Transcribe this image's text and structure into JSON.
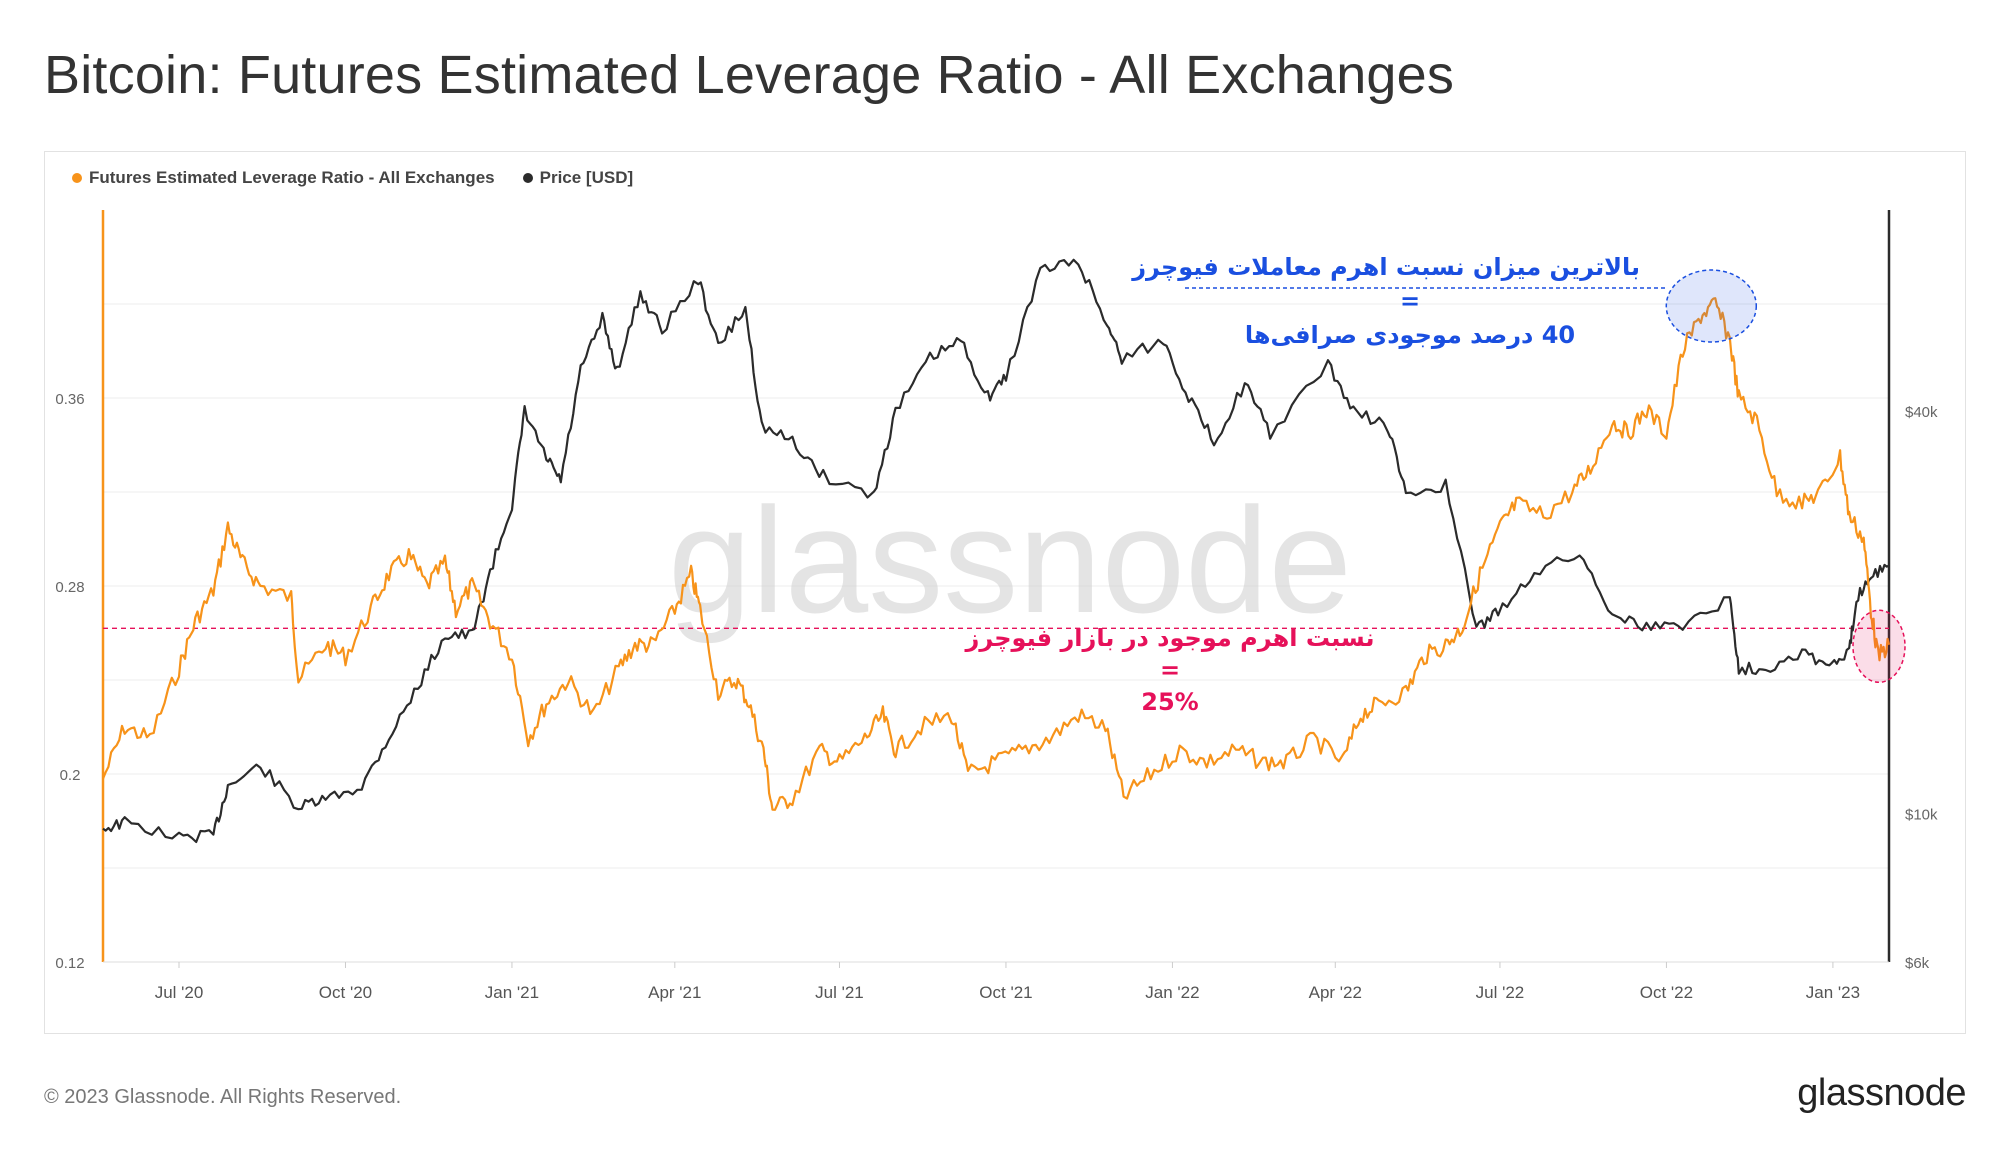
{
  "header": {
    "title": "Bitcoin: Futures Estimated Leverage Ratio - All Exchanges"
  },
  "legend": {
    "items": [
      {
        "label": "Futures Estimated Leverage Ratio - All Exchanges",
        "color": "#f7931a"
      },
      {
        "label": "Price [USD]",
        "color": "#2b2b2b"
      }
    ]
  },
  "annotations": {
    "top": {
      "line1": "بالاترین میزان نسبت اهرم معاملات فیوچرز",
      "line2": "=",
      "line3": "40 درصد موجودی صرافی‌ها",
      "color": "#1a4fe0"
    },
    "mid": {
      "line1": "نسبت اهرم موجود در بازار فیوچرز",
      "line2": "=",
      "line3": "25%",
      "color": "#e6115a"
    }
  },
  "watermark": "glassnode",
  "footer": {
    "copyright": "© 2023 Glassnode. All Rights Reserved.",
    "brand": "glassnode"
  },
  "chart_data": {
    "type": "line",
    "x_ticks": [
      "Jul '20",
      "Oct '20",
      "Jan '21",
      "Apr '21",
      "Jul '21",
      "Oct '21",
      "Jan '22",
      "Apr '22",
      "Jul '22",
      "Oct '22",
      "Jan '23"
    ],
    "x_range": [
      "2020-05-20",
      "2023-02-01"
    ],
    "y_left": {
      "label": "Futures Estimated Leverage Ratio",
      "ticks": [
        "0.12",
        "0.2",
        "0.28",
        "0.36"
      ],
      "range": [
        0.12,
        0.44
      ]
    },
    "y_right": {
      "label": "Price [USD]",
      "scale": "log",
      "ticks": [
        "$6k",
        "$10k",
        "$40k"
      ],
      "range": [
        6000,
        80000
      ]
    },
    "reference_line": {
      "value": 0.262,
      "label": "25%",
      "color": "#e6115a"
    },
    "series": [
      {
        "name": "Futures Estimated Leverage Ratio - All Exchanges",
        "axis": "left",
        "color": "#f7931a",
        "points": [
          [
            "2020-05-20",
            0.198
          ],
          [
            "2020-06-01",
            0.22
          ],
          [
            "2020-06-15",
            0.215
          ],
          [
            "2020-07-01",
            0.245
          ],
          [
            "2020-07-10",
            0.265
          ],
          [
            "2020-07-20",
            0.278
          ],
          [
            "2020-07-28",
            0.305
          ],
          [
            "2020-08-05",
            0.29
          ],
          [
            "2020-08-15",
            0.28
          ],
          [
            "2020-09-01",
            0.275
          ],
          [
            "2020-09-05",
            0.24
          ],
          [
            "2020-09-20",
            0.255
          ],
          [
            "2020-10-01",
            0.25
          ],
          [
            "2020-10-15",
            0.27
          ],
          [
            "2020-10-25",
            0.285
          ],
          [
            "2020-11-05",
            0.293
          ],
          [
            "2020-11-15",
            0.28
          ],
          [
            "2020-11-25",
            0.29
          ],
          [
            "2020-12-01",
            0.27
          ],
          [
            "2020-12-10",
            0.28
          ],
          [
            "2020-12-20",
            0.265
          ],
          [
            "2021-01-01",
            0.25
          ],
          [
            "2021-01-10",
            0.215
          ],
          [
            "2021-01-20",
            0.23
          ],
          [
            "2021-02-01",
            0.24
          ],
          [
            "2021-02-15",
            0.225
          ],
          [
            "2021-03-01",
            0.245
          ],
          [
            "2021-03-10",
            0.255
          ],
          [
            "2021-03-20",
            0.255
          ],
          [
            "2021-04-01",
            0.27
          ],
          [
            "2021-04-10",
            0.285
          ],
          [
            "2021-04-15",
            0.27
          ],
          [
            "2021-04-25",
            0.235
          ],
          [
            "2021-05-05",
            0.24
          ],
          [
            "2021-05-12",
            0.23
          ],
          [
            "2021-05-20",
            0.21
          ],
          [
            "2021-05-25",
            0.185
          ],
          [
            "2021-06-05",
            0.19
          ],
          [
            "2021-06-20",
            0.21
          ],
          [
            "2021-07-01",
            0.205
          ],
          [
            "2021-07-15",
            0.215
          ],
          [
            "2021-07-25",
            0.225
          ],
          [
            "2021-08-01",
            0.21
          ],
          [
            "2021-08-15",
            0.22
          ],
          [
            "2021-09-01",
            0.225
          ],
          [
            "2021-09-10",
            0.2
          ],
          [
            "2021-09-25",
            0.205
          ],
          [
            "2021-10-10",
            0.21
          ],
          [
            "2021-10-25",
            0.215
          ],
          [
            "2021-11-10",
            0.225
          ],
          [
            "2021-11-25",
            0.22
          ],
          [
            "2021-12-05",
            0.19
          ],
          [
            "2021-12-20",
            0.2
          ],
          [
            "2022-01-05",
            0.21
          ],
          [
            "2022-01-20",
            0.205
          ],
          [
            "2022-02-05",
            0.21
          ],
          [
            "2022-02-20",
            0.205
          ],
          [
            "2022-03-05",
            0.205
          ],
          [
            "2022-03-20",
            0.215
          ],
          [
            "2022-04-05",
            0.205
          ],
          [
            "2022-04-15",
            0.225
          ],
          [
            "2022-04-25",
            0.23
          ],
          [
            "2022-05-10",
            0.235
          ],
          [
            "2022-05-20",
            0.25
          ],
          [
            "2022-06-01",
            0.255
          ],
          [
            "2022-06-10",
            0.262
          ],
          [
            "2022-06-20",
            0.285
          ],
          [
            "2022-07-01",
            0.305
          ],
          [
            "2022-07-10",
            0.315
          ],
          [
            "2022-07-25",
            0.31
          ],
          [
            "2022-08-10",
            0.32
          ],
          [
            "2022-08-20",
            0.33
          ],
          [
            "2022-09-01",
            0.35
          ],
          [
            "2022-09-10",
            0.345
          ],
          [
            "2022-09-20",
            0.355
          ],
          [
            "2022-10-01",
            0.345
          ],
          [
            "2022-10-10",
            0.38
          ],
          [
            "2022-10-20",
            0.395
          ],
          [
            "2022-10-28",
            0.4
          ],
          [
            "2022-11-05",
            0.385
          ],
          [
            "2022-11-10",
            0.36
          ],
          [
            "2022-11-20",
            0.35
          ],
          [
            "2022-12-01",
            0.32
          ],
          [
            "2022-12-15",
            0.315
          ],
          [
            "2022-12-25",
            0.32
          ],
          [
            "2023-01-05",
            0.335
          ],
          [
            "2023-01-10",
            0.31
          ],
          [
            "2023-01-18",
            0.3
          ],
          [
            "2023-01-22",
            0.27
          ],
          [
            "2023-01-26",
            0.25
          ],
          [
            "2023-02-01",
            0.255
          ]
        ]
      },
      {
        "name": "Price [USD]",
        "axis": "right",
        "color": "#2b2b2b",
        "points": [
          [
            "2020-05-20",
            9500
          ],
          [
            "2020-06-01",
            9700
          ],
          [
            "2020-07-01",
            9200
          ],
          [
            "2020-07-20",
            9300
          ],
          [
            "2020-07-28",
            11000
          ],
          [
            "2020-08-15",
            11800
          ],
          [
            "2020-09-05",
            10200
          ],
          [
            "2020-09-20",
            10500
          ],
          [
            "2020-10-10",
            11000
          ],
          [
            "2020-10-25",
            13000
          ],
          [
            "2020-11-10",
            15500
          ],
          [
            "2020-11-25",
            18500
          ],
          [
            "2020-12-10",
            18500
          ],
          [
            "2020-12-20",
            23000
          ],
          [
            "2021-01-01",
            29000
          ],
          [
            "2021-01-08",
            40000
          ],
          [
            "2021-01-20",
            34000
          ],
          [
            "2021-01-28",
            31500
          ],
          [
            "2021-02-08",
            46000
          ],
          [
            "2021-02-20",
            55000
          ],
          [
            "2021-02-28",
            46000
          ],
          [
            "2021-03-13",
            60000
          ],
          [
            "2021-03-25",
            53000
          ],
          [
            "2021-04-14",
            63000
          ],
          [
            "2021-04-25",
            50000
          ],
          [
            "2021-05-10",
            57000
          ],
          [
            "2021-05-19",
            38000
          ],
          [
            "2021-06-05",
            36000
          ],
          [
            "2021-06-22",
            32000
          ],
          [
            "2021-07-20",
            30000
          ],
          [
            "2021-08-01",
            40000
          ],
          [
            "2021-08-20",
            48000
          ],
          [
            "2021-09-06",
            51000
          ],
          [
            "2021-09-21",
            42000
          ],
          [
            "2021-10-01",
            45000
          ],
          [
            "2021-10-20",
            65000
          ],
          [
            "2021-11-10",
            67000
          ],
          [
            "2021-11-26",
            54000
          ],
          [
            "2021-12-04",
            48000
          ],
          [
            "2021-12-27",
            51000
          ],
          [
            "2022-01-10",
            42000
          ],
          [
            "2022-01-24",
            36000
          ],
          [
            "2022-02-10",
            44000
          ],
          [
            "2022-02-24",
            37000
          ],
          [
            "2022-03-28",
            47000
          ],
          [
            "2022-04-11",
            40000
          ],
          [
            "2022-04-30",
            38000
          ],
          [
            "2022-05-10",
            30000
          ],
          [
            "2022-06-01",
            31000
          ],
          [
            "2022-06-18",
            19000
          ],
          [
            "2022-06-30",
            20000
          ],
          [
            "2022-07-20",
            23000
          ],
          [
            "2022-08-14",
            24500
          ],
          [
            "2022-09-01",
            20000
          ],
          [
            "2022-09-20",
            19000
          ],
          [
            "2022-10-10",
            19200
          ],
          [
            "2022-11-05",
            21000
          ],
          [
            "2022-11-10",
            16500
          ],
          [
            "2022-11-25",
            16500
          ],
          [
            "2022-12-15",
            17500
          ],
          [
            "2022-12-30",
            16600
          ],
          [
            "2023-01-10",
            17400
          ],
          [
            "2023-01-14",
            21000
          ],
          [
            "2023-01-22",
            22800
          ],
          [
            "2023-02-01",
            23500
          ]
        ]
      }
    ]
  }
}
